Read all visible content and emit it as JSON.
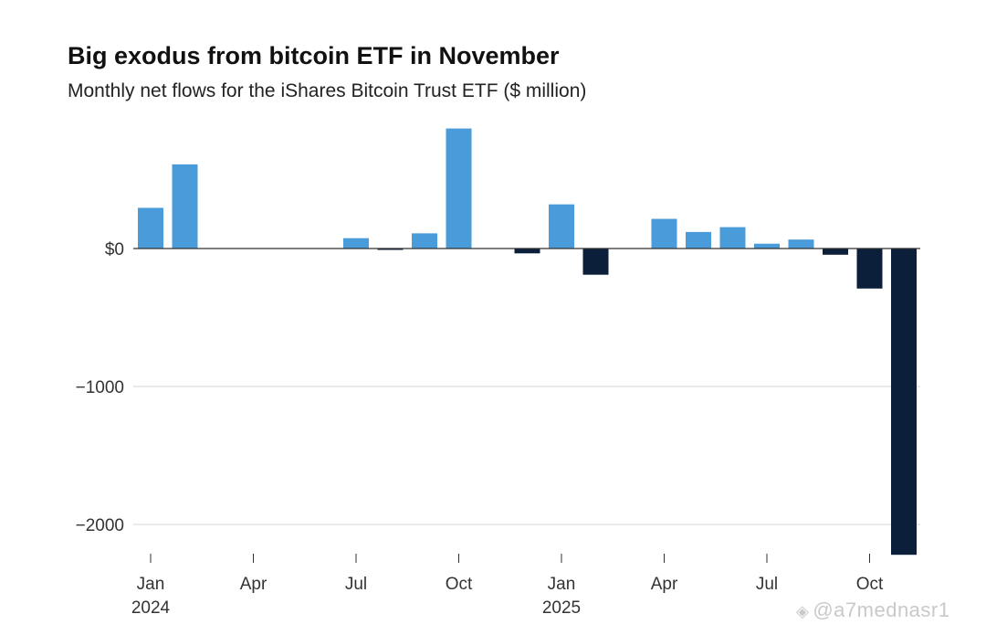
{
  "chart_data": {
    "type": "bar",
    "title": "Big exodus from bitcoin ETF in November",
    "subtitle": "Monthly net flows for the iShares Bitcoin Trust ETF ($ million)",
    "xlabel": "",
    "ylabel": "",
    "ylim": [
      -2220,
      870
    ],
    "yticks": [
      0,
      -1000,
      -2000
    ],
    "ytick_labels": [
      "$0",
      "−1000",
      "−2000"
    ],
    "categories": [
      "Jan 2024",
      "Feb 2024",
      "Mar 2024",
      "Apr 2024",
      "May 2024",
      "Jun 2024",
      "Jul 2024",
      "Aug 2024",
      "Sep 2024",
      "Oct 2024",
      "Nov 2024",
      "Dec 2024",
      "Jan 2025",
      "Feb 2025",
      "Mar 2025",
      "Apr 2025",
      "May 2025",
      "Jun 2025",
      "Jul 2025",
      "Aug 2025",
      "Sep 2025",
      "Oct 2025",
      "Nov 2025"
    ],
    "values": [
      295,
      610,
      0,
      0,
      0,
      0,
      75,
      -10,
      110,
      870,
      0,
      -35,
      320,
      -190,
      0,
      215,
      120,
      155,
      35,
      65,
      -45,
      -290,
      -2220
    ],
    "x_tick_labels": [
      {
        "index": 0,
        "month": "Jan",
        "year": "2024"
      },
      {
        "index": 3,
        "month": "Apr",
        "year": ""
      },
      {
        "index": 6,
        "month": "Jul",
        "year": ""
      },
      {
        "index": 9,
        "month": "Oct",
        "year": ""
      },
      {
        "index": 12,
        "month": "Jan",
        "year": "2025"
      },
      {
        "index": 15,
        "month": "Apr",
        "year": ""
      },
      {
        "index": 18,
        "month": "Jul",
        "year": ""
      },
      {
        "index": 21,
        "month": "Oct",
        "year": ""
      }
    ],
    "colors": {
      "positive": "#4a9bd9",
      "negative": "#0b1f3a",
      "grid": "#d6d6d6",
      "zero_line": "#333333"
    }
  },
  "watermark": {
    "icon": "◈",
    "text": "@a7mednasr1"
  }
}
